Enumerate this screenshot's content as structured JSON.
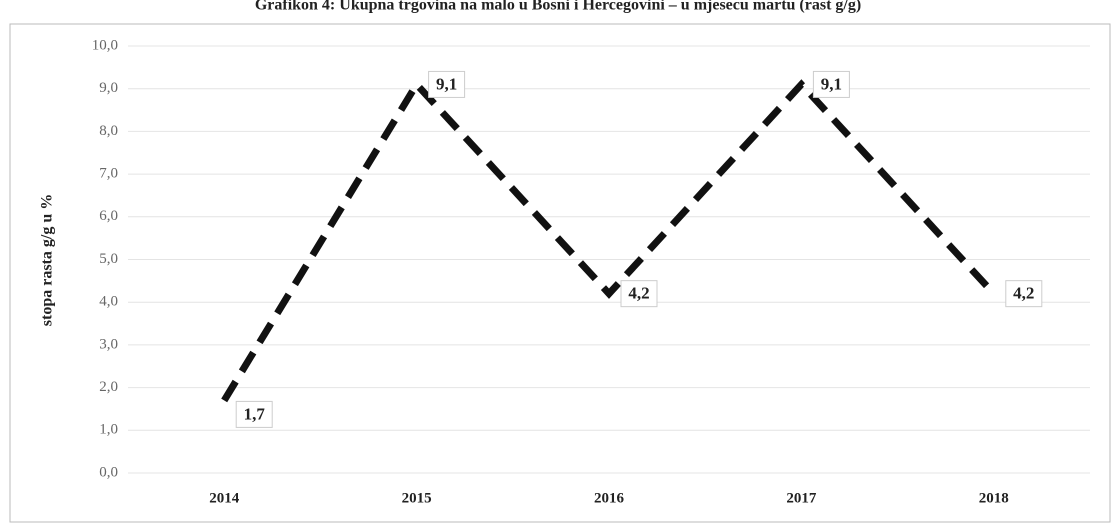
{
  "chart_data": {
    "type": "line",
    "title": "Grafikon 4: Ukupna trgovina na malo u Bosni i Hercegovini – u mjesecu martu (rast g/g)",
    "y_label": "stopa rasta g/g u %",
    "categories": [
      "2014",
      "2015",
      "2016",
      "2017",
      "2018"
    ],
    "series": [
      {
        "name": "rast g/g",
        "color": "#111111",
        "values": [
          1.7,
          9.1,
          4.2,
          9.1,
          4.2
        ],
        "value_labels": [
          "1,7",
          "9,1",
          "4,2",
          "9,1",
          "4,2"
        ]
      }
    ],
    "ylim": [
      0,
      10
    ],
    "yticks": [
      {
        "value": 0,
        "label": "0,0"
      },
      {
        "value": 1,
        "label": "1,0"
      },
      {
        "value": 2,
        "label": "2,0"
      },
      {
        "value": 3,
        "label": "3,0"
      },
      {
        "value": 4,
        "label": "4,0"
      },
      {
        "value": 5,
        "label": "5,0"
      },
      {
        "value": 6,
        "label": "6,0"
      },
      {
        "value": 7,
        "label": "7,0"
      },
      {
        "value": 8,
        "label": "8,0"
      },
      {
        "value": 9,
        "label": "9,0"
      },
      {
        "value": 10,
        "label": "10,0"
      }
    ],
    "grid": true
  }
}
